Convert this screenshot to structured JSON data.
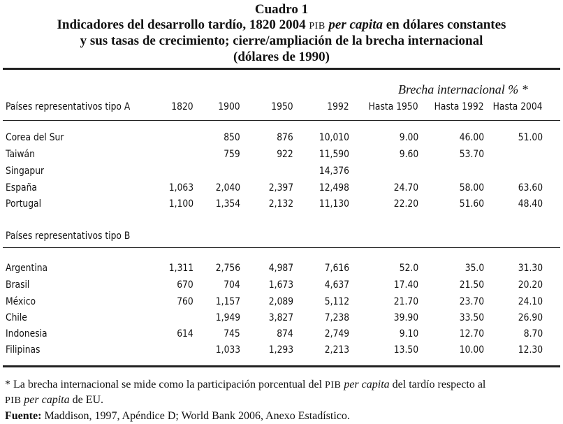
{
  "title": {
    "line1": "Cuadro 1",
    "line2_pre": "Indicadores del desarrollo tardío, 1820 2004 ",
    "line2_pib": "PIB",
    "line2_italic": " per capita",
    "line2_post": " en dólares constantes",
    "line3": "y sus tasas de crecimiento; cierre/ampliación de la brecha internacional",
    "line4": "(dólares de 1990)"
  },
  "table": {
    "gap_caption": "Brecha internacional  %  *",
    "group_a_label": "Países representativos tipo A",
    "group_b_label": "Países representativos tipo B",
    "columns": [
      "1820",
      "1900",
      "1950",
      "1992",
      "Hasta 1950",
      "Hasta 1992",
      "Hasta 2004"
    ],
    "group_a_rows": [
      {
        "country": "Corea del Sur",
        "v": [
          "",
          "850",
          "876",
          "10,010",
          "9.00",
          "46.00",
          "51.00"
        ]
      },
      {
        "country": "Taiwán",
        "v": [
          "",
          "759",
          "922",
          "11,590",
          "9.60",
          "53.70",
          ""
        ]
      },
      {
        "country": "Singapur",
        "v": [
          "",
          "",
          "",
          "14,376",
          "",
          "",
          ""
        ]
      },
      {
        "country": "España",
        "v": [
          "1,063",
          "2,040",
          "2,397",
          "12,498",
          "24.70",
          "58.00",
          "63.60"
        ]
      },
      {
        "country": "Portugal",
        "v": [
          "1,100",
          "1,354",
          "2,132",
          "11,130",
          "22.20",
          "51.60",
          "48.40"
        ]
      }
    ],
    "group_b_rows": [
      {
        "country": "Argentina",
        "v": [
          "1,311",
          "2,756",
          "4,987",
          "7,616",
          "52.0",
          "35.0",
          "31.30"
        ]
      },
      {
        "country": "Brasil",
        "v": [
          "670",
          "704",
          "1,673",
          "4,637",
          "17.40",
          "21.50",
          "20.20"
        ]
      },
      {
        "country": "México",
        "v": [
          "760",
          "1,157",
          "2,089",
          "5,112",
          "21.70",
          "23.70",
          "24.10"
        ]
      },
      {
        "country": "Chile",
        "v": [
          "",
          "1,949",
          "3,827",
          "7,238",
          "39.90",
          "33.50",
          "26.90"
        ]
      },
      {
        "country": "Indonesia",
        "v": [
          "614",
          "745",
          "874",
          "2,749",
          "9.10",
          "12.70",
          "8.70"
        ]
      },
      {
        "country": "Filipinas",
        "v": [
          "",
          "1,033",
          "1,293",
          "2,213",
          "13.50",
          "10.00",
          "12.30"
        ]
      }
    ]
  },
  "notes": {
    "footnote_a": "* La brecha internacional se mide como la participación porcentual del ",
    "footnote_pib": "PIB",
    "footnote_italic": " per capita",
    "footnote_b": " del tardío respecto al",
    "footnote2_pib": "PIB",
    "footnote2_italic": " per capita",
    "footnote2_post": " de EU.",
    "source_label": "Fuente:",
    "source_text": " Maddison, 1997, Apéndice D; World Bank 2006, Anexo Estadístico."
  }
}
